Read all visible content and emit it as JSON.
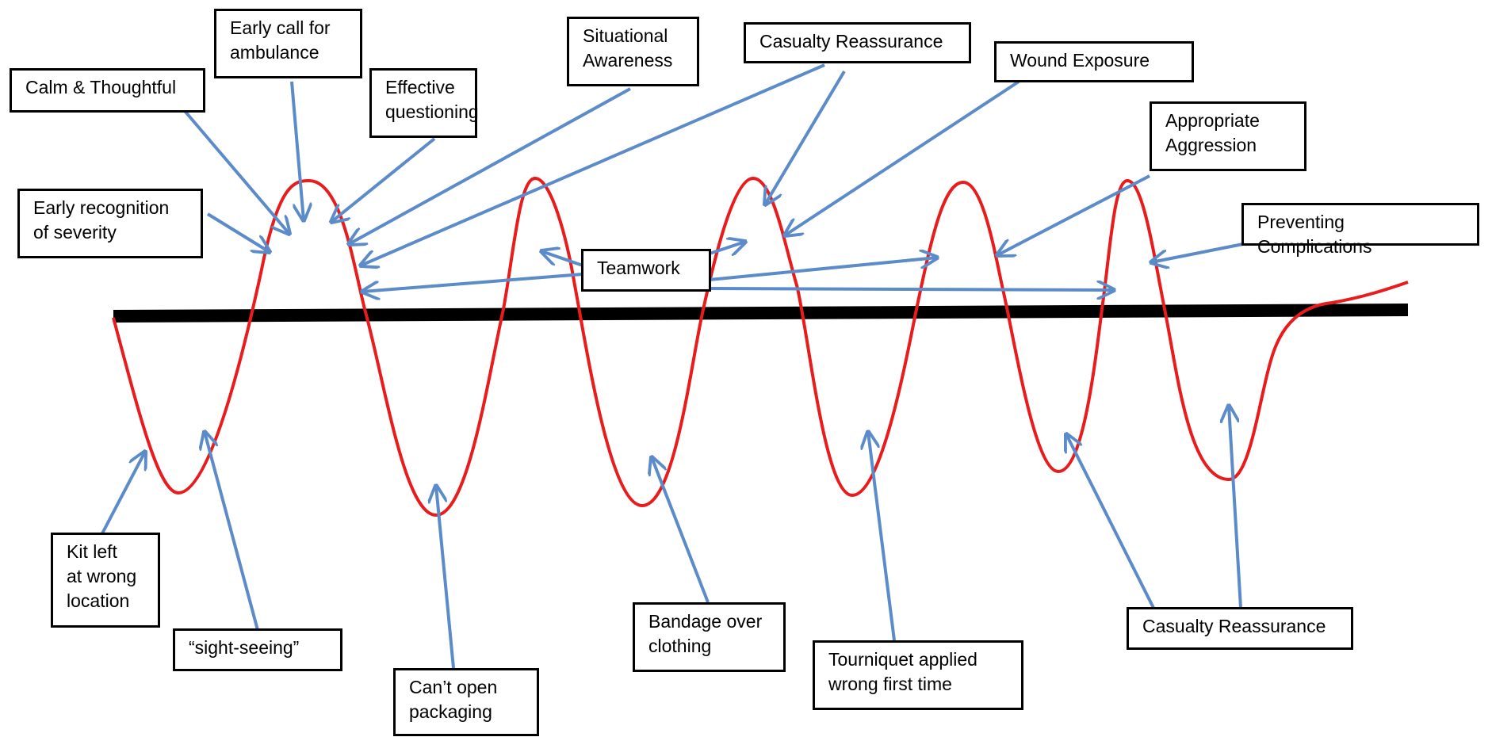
{
  "diagram": {
    "colors": {
      "wave": "#e81c1c",
      "arrow": "#5b8bc8",
      "baseline": "#000000",
      "box_border": "#000000",
      "background": "#ffffff"
    },
    "positive_labels": [
      {
        "id": "calm",
        "text": "Calm & Thoughtful"
      },
      {
        "id": "early-call",
        "text": "Early call for\nambulance"
      },
      {
        "id": "effective-q",
        "text": "Effective\nquestioning"
      },
      {
        "id": "situational",
        "text": "Situational\nAwareness"
      },
      {
        "id": "casualty-top",
        "text": "Casualty Reassurance"
      },
      {
        "id": "wound",
        "text": "Wound Exposure"
      },
      {
        "id": "aggression",
        "text": "Appropriate\nAggression"
      },
      {
        "id": "early-recog",
        "text": "Early recognition\nof severity"
      },
      {
        "id": "teamwork",
        "text": "Teamwork"
      },
      {
        "id": "preventing",
        "text": "Preventing Complications"
      }
    ],
    "negative_labels": [
      {
        "id": "kit",
        "text": "Kit left\nat wrong\nlocation"
      },
      {
        "id": "sight",
        "text": "“sight-seeing”"
      },
      {
        "id": "packaging",
        "text": "Can’t open\npackaging"
      },
      {
        "id": "bandage",
        "text": "Bandage over\nclothing"
      },
      {
        "id": "tourniquet",
        "text": "Tourniquet applied\nwrong first time"
      },
      {
        "id": "casualty-bottom",
        "text": "Casualty Reassurance"
      }
    ]
  }
}
